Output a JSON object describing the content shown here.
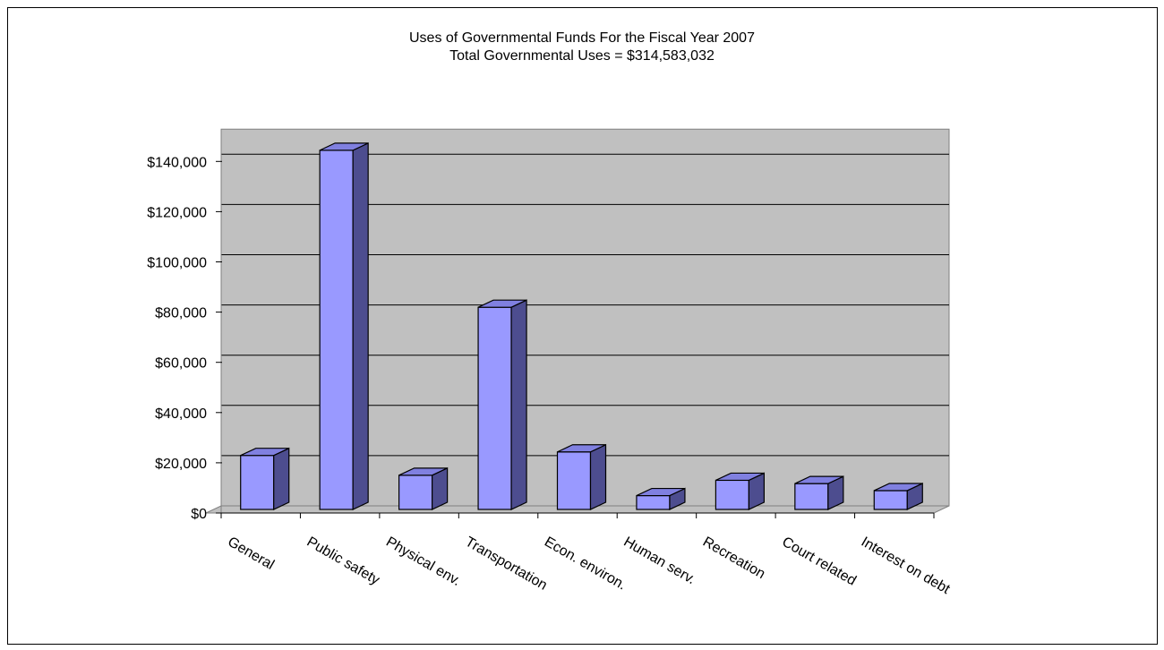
{
  "chart_data": {
    "type": "bar",
    "style": "3d-column",
    "title": "Uses of Governmental Funds For the Fiscal Year 2007",
    "subtitle": "Total Governmental Uses = $314,583,032",
    "categories": [
      "General",
      "Public safety",
      "Physical env.",
      "Transportation",
      "Econ. environ.",
      "Human serv.",
      "Recreation",
      "Court related",
      "Interest on debt"
    ],
    "values": [
      21500,
      143000,
      13600,
      80500,
      22900,
      5500,
      11600,
      10300,
      7500
    ],
    "ylim": [
      0,
      150000
    ],
    "yticks": [
      0,
      20000,
      40000,
      60000,
      80000,
      100000,
      120000,
      140000
    ],
    "ytick_labels": [
      "$0",
      "$20,000",
      "$40,000",
      "$60,000",
      "$80,000",
      "$100,000",
      "$120,000",
      "$140,000"
    ],
    "xlabel": "",
    "ylabel": "",
    "grid": true,
    "legend": "none",
    "colors": {
      "bar_front": "#9999ff",
      "bar_side": "#4d4d8f",
      "bar_top": "#8080e0",
      "plot_background": "#c0c0c0",
      "gridline": "#000000"
    }
  }
}
